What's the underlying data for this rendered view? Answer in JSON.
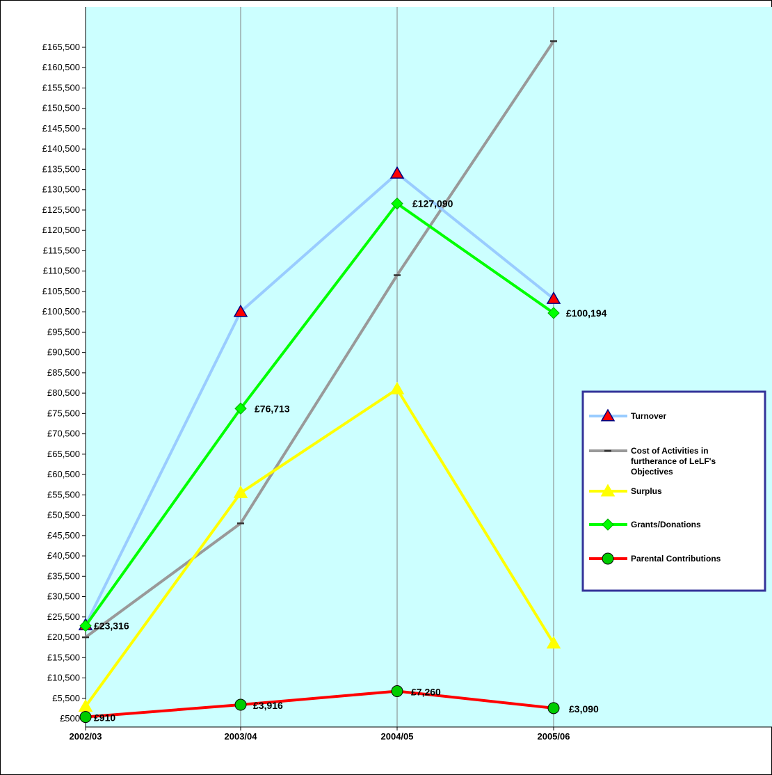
{
  "chart_data": {
    "type": "line",
    "categories": [
      "2002/03",
      "2003/04",
      "2004/05",
      "2005/06"
    ],
    "ylim": [
      500,
      168000
    ],
    "yticks": [
      500,
      5500,
      10500,
      15500,
      20500,
      25500,
      30500,
      35500,
      40500,
      45500,
      50500,
      55500,
      60500,
      65500,
      70500,
      75500,
      80500,
      85500,
      90500,
      95500,
      100500,
      105500,
      110500,
      115500,
      120500,
      125500,
      130500,
      135500,
      140500,
      145500,
      150500,
      155500,
      160500,
      165500
    ],
    "ytick_labels": [
      "£500",
      "£5,500",
      "£10,500",
      "£15,500",
      "£20,500",
      "£25,500",
      "£30,500",
      "£35,500",
      "£40,500",
      "£45,500",
      "£50,500",
      "£55,500",
      "£60,500",
      "£65,500",
      "£70,500",
      "£75,500",
      "£80,500",
      "£85,500",
      "£90,500",
      "£95,500",
      "£100,500",
      "£105,500",
      "£110,500",
      "£115,500",
      "£120,500",
      "£125,500",
      "£130,500",
      "£135,500",
      "£140,500",
      "£145,500",
      "£150,500",
      "£155,500",
      "£160,500",
      "£165,500"
    ],
    "grid": false,
    "legend_position": "right",
    "plot_background": "#ccffff",
    "series": [
      {
        "name": "Turnover",
        "values": [
          23500,
          100500,
          134500,
          103700
        ],
        "color": "#99ccff",
        "marker": "triangle",
        "marker_color": "#ff0000",
        "marker_edge": "#000080"
      },
      {
        "name": "Cost of Activities in furtherance of LeLF's Objectives",
        "values": [
          20500,
          48500,
          109500,
          167000
        ],
        "color": "#999999",
        "marker": "dash",
        "marker_color": "#333333"
      },
      {
        "name": "Surplus",
        "values": [
          3500,
          56000,
          81500,
          19000
        ],
        "color": "#ffff00",
        "marker": "triangle",
        "marker_color": "#ffff00"
      },
      {
        "name": "Grants/Donations",
        "values": [
          23316,
          76713,
          127090,
          100194
        ],
        "color": "#00ff00",
        "marker": "diamond",
        "marker_color": "#00ff00",
        "data_labels": [
          "£23,316",
          "£76,713",
          "£127,090",
          "£100,194"
        ]
      },
      {
        "name": "Parental Contributions",
        "values": [
          910,
          3916,
          7260,
          3090
        ],
        "color": "#ff0000",
        "marker": "circle",
        "marker_color": "#00cc00",
        "data_labels": [
          "£910",
          "£3,916",
          "£7,260",
          "£3,090"
        ]
      }
    ]
  }
}
